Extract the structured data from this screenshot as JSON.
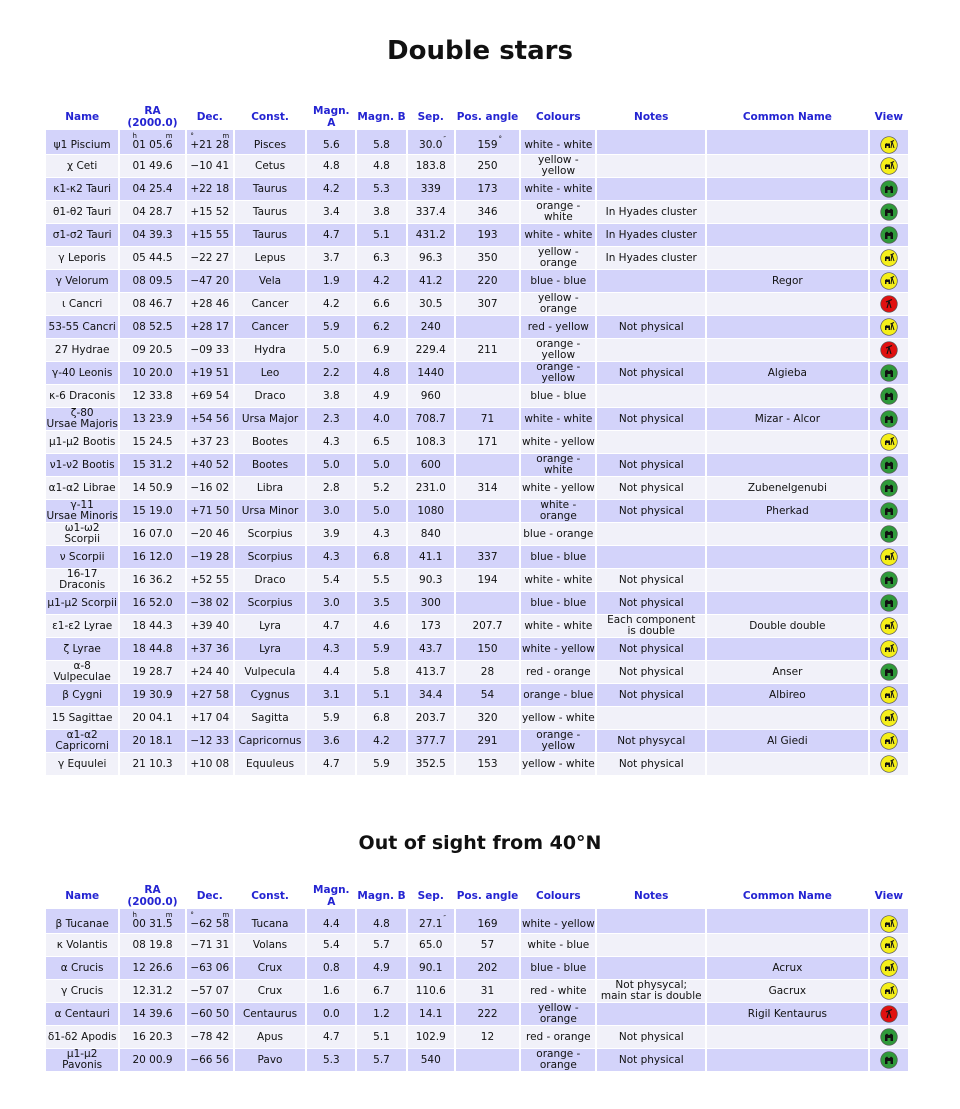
{
  "titles": {
    "main": "Double stars",
    "south": "Out of sight from 40°N"
  },
  "columns": [
    "Name",
    "RA (2000.0)",
    "Dec.",
    "Const.",
    "Magn. A",
    "Magn. B",
    "Sep.",
    "Pos. angle",
    "Colours",
    "Notes",
    "Common Name",
    "View"
  ],
  "units": {
    "ra_h": "h",
    "ra_m": "m",
    "dec_deg": "°",
    "dec_m": "m",
    "sep": "″",
    "pa": "°"
  },
  "view_icons": {
    "both": {
      "name": "binoculars-telescope-icon",
      "color": "#f5ef1a"
    },
    "binoculars": {
      "name": "binoculars-icon",
      "color": "#2f9a3a"
    },
    "telescope": {
      "name": "telescope-icon",
      "color": "#e01010"
    }
  },
  "tables": [
    {
      "rows": [
        [
          "ψ1 Piscium",
          "01 05.6",
          "+21 28",
          "Pisces",
          "5.6",
          "5.8",
          "30.0",
          "159",
          "white - white",
          "",
          "",
          "both"
        ],
        [
          "χ Ceti",
          "01 49.6",
          "−10 41",
          "Cetus",
          "4.8",
          "4.8",
          "183.8",
          "250",
          "yellow - yellow",
          "",
          "",
          "both"
        ],
        [
          "κ1-κ2 Tauri",
          "04 25.4",
          "+22 18",
          "Taurus",
          "4.2",
          "5.3",
          "339",
          "173",
          "white - white",
          "",
          "",
          "binoculars"
        ],
        [
          "θ1-θ2 Tauri",
          "04 28.7",
          "+15 52",
          "Taurus",
          "3.4",
          "3.8",
          "337.4",
          "346",
          "orange - white",
          "In Hyades cluster",
          "",
          "binoculars"
        ],
        [
          "σ1-σ2 Tauri",
          "04 39.3",
          "+15 55",
          "Taurus",
          "4.7",
          "5.1",
          "431.2",
          "193",
          "white - white",
          "In Hyades cluster",
          "",
          "binoculars"
        ],
        [
          "γ Leporis",
          "05 44.5",
          "−22 27",
          "Lepus",
          "3.7",
          "6.3",
          "96.3",
          "350",
          "yellow - orange",
          "In Hyades cluster",
          "",
          "both"
        ],
        [
          "γ Velorum",
          "08 09.5",
          "−47 20",
          "Vela",
          "1.9",
          "4.2",
          "41.2",
          "220",
          "blue - blue",
          "",
          "Regor",
          "both"
        ],
        [
          "ι Cancri",
          "08 46.7",
          "+28 46",
          "Cancer",
          "4.2",
          "6.6",
          "30.5",
          "307",
          "yellow - orange",
          "",
          "",
          "telescope"
        ],
        [
          "53-55 Cancri",
          "08 52.5",
          "+28 17",
          "Cancer",
          "5.9",
          "6.2",
          "240",
          "",
          "red - yellow",
          "Not physical",
          "",
          "both"
        ],
        [
          "27 Hydrae",
          "09 20.5",
          "−09 33",
          "Hydra",
          "5.0",
          "6.9",
          "229.4",
          "211",
          "orange - yellow",
          "",
          "",
          "telescope"
        ],
        [
          "γ-40 Leonis",
          "10 20.0",
          "+19 51",
          "Leo",
          "2.2",
          "4.8",
          "1440",
          "",
          "orange - yellow",
          "Not physical",
          "Algieba",
          "binoculars"
        ],
        [
          "κ-6 Draconis",
          "12 33.8",
          "+69 54",
          "Draco",
          "3.8",
          "4.9",
          "960",
          "",
          "blue - blue",
          "",
          "",
          "binoculars"
        ],
        [
          "ζ-80\nUrsae Majoris",
          "13 23.9",
          "+54 56",
          "Ursa Major",
          "2.3",
          "4.0",
          "708.7",
          "71",
          "white - white",
          "Not physical",
          "Mizar - Alcor",
          "binoculars"
        ],
        [
          "μ1-μ2 Bootis",
          "15 24.5",
          "+37 23",
          "Bootes",
          "4.3",
          "6.5",
          "108.3",
          "171",
          "white - yellow",
          "",
          "",
          "both"
        ],
        [
          "ν1-ν2 Bootis",
          "15 31.2",
          "+40 52",
          "Bootes",
          "5.0",
          "5.0",
          "600",
          "",
          "orange - white",
          "Not physical",
          "",
          "binoculars"
        ],
        [
          "α1-α2 Librae",
          "14 50.9",
          "−16 02",
          "Libra",
          "2.8",
          "5.2",
          "231.0",
          "314",
          "white - yellow",
          "Not physical",
          "Zubenelgenubi",
          "binoculars"
        ],
        [
          "γ-11\nUrsae Minoris",
          "15 19.0",
          "+71 50",
          "Ursa Minor",
          "3.0",
          "5.0",
          "1080",
          "",
          "white - orange",
          "Not physical",
          "Pherkad",
          "binoculars"
        ],
        [
          "ω1-ω2 Scorpii",
          "16 07.0",
          "−20 46",
          "Scorpius",
          "3.9",
          "4.3",
          "840",
          "",
          "blue - orange",
          "",
          "",
          "binoculars"
        ],
        [
          "ν Scorpii",
          "16 12.0",
          "−19 28",
          "Scorpius",
          "4.3",
          "6.8",
          "41.1",
          "337",
          "blue - blue",
          "",
          "",
          "both"
        ],
        [
          "16-17\nDraconis",
          "16 36.2",
          "+52 55",
          "Draco",
          "5.4",
          "5.5",
          "90.3",
          "194",
          "white - white",
          "Not physical",
          "",
          "binoculars"
        ],
        [
          "μ1-μ2 Scorpii",
          "16 52.0",
          "−38 02",
          "Scorpius",
          "3.0",
          "3.5",
          "300",
          "",
          "blue - blue",
          "Not physical",
          "",
          "binoculars"
        ],
        [
          "ε1-ε2 Lyrae",
          "18 44.3",
          "+39 40",
          "Lyra",
          "4.7",
          "4.6",
          "173",
          "207.7",
          "white - white",
          "Each component\nis double",
          "Double double",
          "both"
        ],
        [
          "ζ Lyrae",
          "18 44.8",
          "+37 36",
          "Lyra",
          "4.3",
          "5.9",
          "43.7",
          "150",
          "white - yellow",
          "Not physical",
          "",
          "both"
        ],
        [
          "α-8\nVulpeculae",
          "19 28.7",
          "+24 40",
          "Vulpecula",
          "4.4",
          "5.8",
          "413.7",
          "28",
          "red - orange",
          "Not physical",
          "Anser",
          "binoculars"
        ],
        [
          "β Cygni",
          "19 30.9",
          "+27 58",
          "Cygnus",
          "3.1",
          "5.1",
          "34.4",
          "54",
          "orange - blue",
          "Not physical",
          "Albireo",
          "both"
        ],
        [
          "15 Sagittae",
          "20 04.1",
          "+17 04",
          "Sagitta",
          "5.9",
          "6.8",
          "203.7",
          "320",
          "yellow - white",
          "",
          "",
          "both"
        ],
        [
          "α1-α2\nCapricorni",
          "20 18.1",
          "−12 33",
          "Capricornus",
          "3.6",
          "4.2",
          "377.7",
          "291",
          "orange - yellow",
          "Not physycal",
          "Al Giedi",
          "both"
        ],
        [
          "γ Equulei",
          "21 10.3",
          "+10 08",
          "Equuleus",
          "4.7",
          "5.9",
          "352.5",
          "153",
          "yellow - white",
          "Not physical",
          "",
          "both"
        ]
      ]
    },
    {
      "rows": [
        [
          "β Tucanae",
          "00 31.5",
          "−62 58",
          "Tucana",
          "4.4",
          "4.8",
          "27.1",
          "169",
          "white - yellow",
          "",
          "",
          "both"
        ],
        [
          "κ Volantis",
          "08 19.8",
          "−71 31",
          "Volans",
          "5.4",
          "5.7",
          "65.0",
          "57",
          "white - blue",
          "",
          "",
          "both"
        ],
        [
          "α Crucis",
          "12 26.6",
          "−63 06",
          "Crux",
          "0.8",
          "4.9",
          "90.1",
          "202",
          "blue - blue",
          "",
          "Acrux",
          "both"
        ],
        [
          "γ Crucis",
          "12.31.2",
          "−57 07",
          "Crux",
          "1.6",
          "6.7",
          "110.6",
          "31",
          "red - white",
          "Not physycal;\nmain star is double",
          "Gacrux",
          "both"
        ],
        [
          "α Centauri",
          "14 39.6",
          "−60 50",
          "Centaurus",
          "0.0",
          "1.2",
          "14.1",
          "222",
          "yellow - orange",
          "",
          "Rigil Kentaurus",
          "telescope"
        ],
        [
          "δ1-δ2 Apodis",
          "16 20.3",
          "−78 42",
          "Apus",
          "4.7",
          "5.1",
          "102.9",
          "12",
          "red - orange",
          "Not physical",
          "",
          "binoculars"
        ],
        [
          "μ1-μ2 Pavonis",
          "20 00.9",
          "−66 56",
          "Pavo",
          "5.3",
          "5.7",
          "540",
          "",
          "orange - orange",
          "Not physical",
          "",
          "binoculars"
        ]
      ]
    }
  ]
}
